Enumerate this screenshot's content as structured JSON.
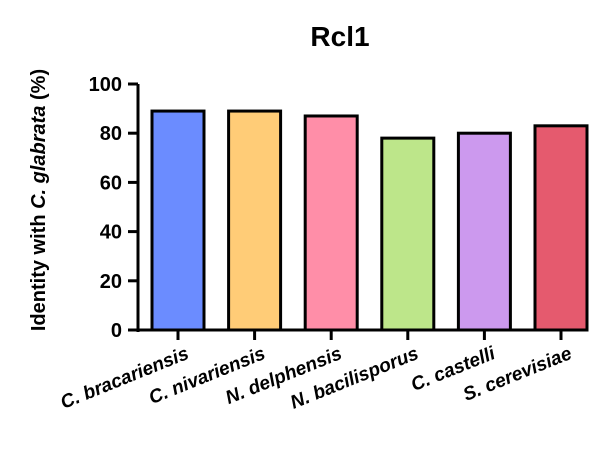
{
  "chart_data": {
    "type": "bar",
    "title": "Rcl1",
    "ylabel_parts": [
      "Identity with ",
      "C. glabrata",
      " (%)"
    ],
    "xlabel": "",
    "categories": [
      "C. bracariensis",
      "C. nivariensis",
      "N. delphensis",
      "N. bacilisporus",
      "C. castelli",
      "S. cerevisiae"
    ],
    "values": [
      89,
      89,
      87,
      78,
      80,
      83
    ],
    "ylim": [
      0,
      100
    ],
    "yticks": [
      0,
      20,
      40,
      60,
      80,
      100
    ],
    "grid": false,
    "bar_colors": [
      "#6b8cff",
      "#ffcc77",
      "#ff8ea8",
      "#bde68a",
      "#cc99ee",
      "#e55a6e"
    ]
  }
}
